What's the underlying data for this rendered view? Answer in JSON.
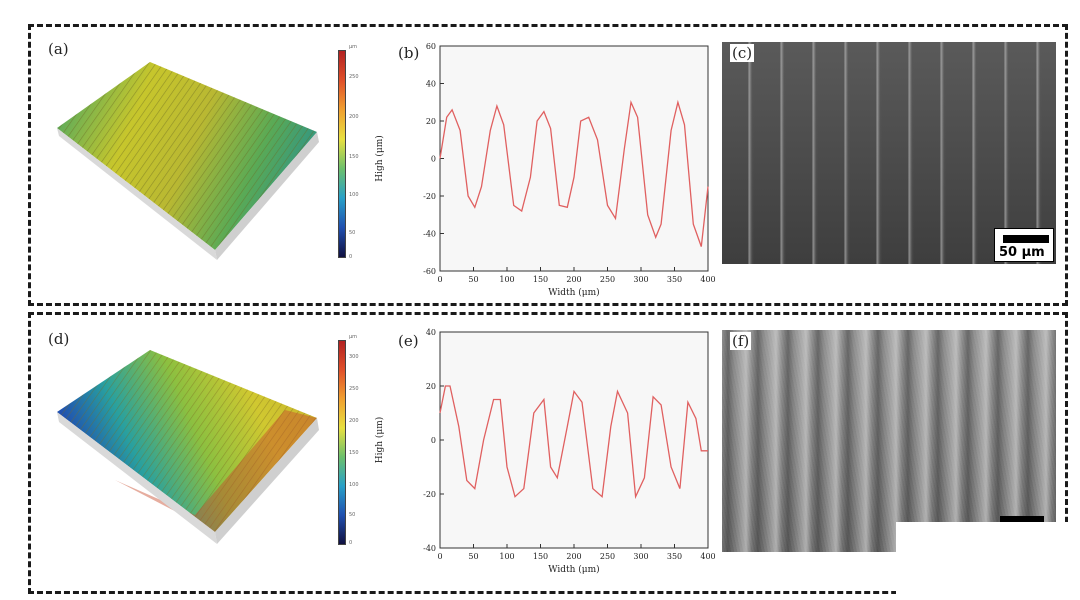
{
  "rows": [
    {
      "labels": {
        "surface": "(a)",
        "profile": "(b)",
        "sem": "(c)"
      },
      "colorbar": {
        "unit": "μm",
        "ticks": [
          "250",
          "200",
          "150",
          "100",
          "50",
          "0"
        ]
      },
      "scale_bar": "50 μm"
    },
    {
      "labels": {
        "surface": "(d)",
        "profile": "(e)",
        "sem": "(f)"
      },
      "colorbar": {
        "unit": "μm",
        "ticks": [
          "300",
          "250",
          "200",
          "150",
          "100",
          "50",
          "0"
        ]
      },
      "scale_bar": ""
    }
  ],
  "chart_data": [
    {
      "type": "line",
      "xlabel": "Width (μm)",
      "ylabel": "High (μm)",
      "xlim": [
        0,
        400
      ],
      "ylim": [
        -60,
        60
      ],
      "xticks": [
        0,
        50,
        100,
        150,
        200,
        250,
        300,
        350,
        400
      ],
      "yticks": [
        -60,
        -40,
        -20,
        0,
        20,
        40,
        60
      ],
      "color": "#e06060",
      "x": [
        0,
        10,
        18,
        30,
        42,
        52,
        62,
        75,
        85,
        95,
        110,
        122,
        135,
        145,
        155,
        165,
        178,
        190,
        200,
        210,
        222,
        235,
        250,
        262,
        275,
        285,
        295,
        310,
        322,
        330,
        345,
        355,
        365,
        378,
        390,
        400
      ],
      "y": [
        0,
        22,
        26,
        15,
        -20,
        -26,
        -15,
        15,
        28,
        18,
        -25,
        -28,
        -10,
        20,
        25,
        16,
        -25,
        -26,
        -10,
        20,
        22,
        10,
        -25,
        -32,
        5,
        30,
        22,
        -30,
        -42,
        -35,
        15,
        30,
        18,
        -35,
        -47,
        -15
      ]
    },
    {
      "type": "line",
      "xlabel": "Width (μm)",
      "ylabel": "High (μm)",
      "xlim": [
        0,
        400
      ],
      "ylim": [
        -40,
        40
      ],
      "xticks": [
        0,
        50,
        100,
        150,
        200,
        250,
        300,
        350,
        400
      ],
      "yticks": [
        -40,
        -20,
        0,
        20,
        40
      ],
      "color": "#e06060",
      "x": [
        0,
        8,
        15,
        28,
        40,
        52,
        65,
        80,
        90,
        100,
        112,
        125,
        140,
        155,
        165,
        175,
        190,
        200,
        212,
        228,
        242,
        255,
        265,
        280,
        292,
        305,
        318,
        330,
        345,
        358,
        370,
        382,
        390,
        400
      ],
      "y": [
        10,
        20,
        20,
        5,
        -15,
        -18,
        0,
        15,
        15,
        -10,
        -21,
        -18,
        10,
        15,
        -10,
        -14,
        5,
        18,
        14,
        -18,
        -21,
        5,
        18,
        10,
        -21,
        -14,
        16,
        13,
        -10,
        -18,
        14,
        8,
        -4,
        -4
      ]
    }
  ]
}
